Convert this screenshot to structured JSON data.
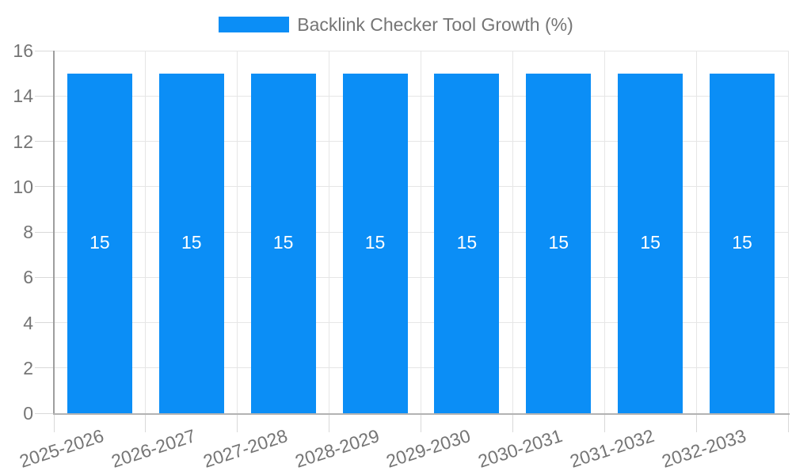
{
  "chart_data": {
    "type": "bar",
    "title": "Backlink Checker Tool Growth (%)",
    "categories": [
      "2025-2026",
      "2026-2027",
      "2027-2028",
      "2028-2029",
      "2029-2030",
      "2030-2031",
      "2031-2032",
      "2032-2033"
    ],
    "values": [
      15,
      15,
      15,
      15,
      15,
      15,
      15,
      15
    ],
    "xlabel": "",
    "ylabel": "",
    "ylim": [
      0,
      16
    ],
    "ytick_step": 2,
    "yticks": [
      0,
      2,
      4,
      6,
      8,
      10,
      12,
      14,
      16
    ],
    "grid": true,
    "legend_position": "top-center",
    "bar_value_labels_shown": true
  },
  "colors": {
    "bar": "#0b8ef6",
    "bar_label": "#ffffff",
    "axis_text": "#757575",
    "grid": "#e6e6e6",
    "tick": "#d9d9d9",
    "axis_line": "#9e9e9e",
    "baseline": "#b3b3b3",
    "background": "#ffffff"
  }
}
